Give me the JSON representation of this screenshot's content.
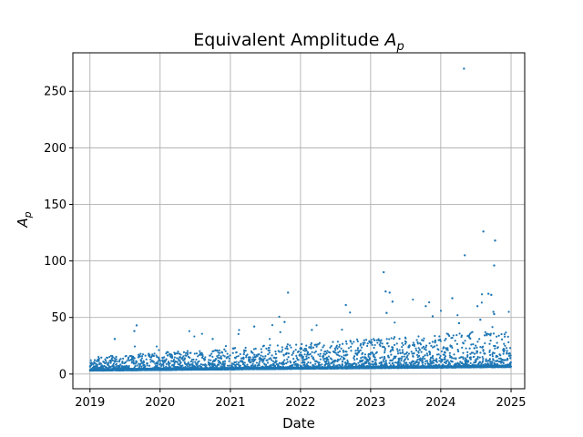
{
  "chart_data": {
    "type": "scatter",
    "title": "Equivalent Amplitude ",
    "title_math": "A",
    "title_sub": "p",
    "xlabel": "Date",
    "ylabel_math": "A",
    "ylabel_sub": "p",
    "x_axis_type": "date",
    "xlim": [
      "2018-10-04",
      "2025-03-13"
    ],
    "ylim": [
      -13,
      284
    ],
    "x_ticks": [
      {
        "value": "2019-01-01",
        "label": "2019"
      },
      {
        "value": "2020-01-01",
        "label": "2020"
      },
      {
        "value": "2021-01-01",
        "label": "2021"
      },
      {
        "value": "2022-01-01",
        "label": "2022"
      },
      {
        "value": "2023-01-01",
        "label": "2023"
      },
      {
        "value": "2024-01-01",
        "label": "2024"
      },
      {
        "value": "2025-01-01",
        "label": "2025"
      }
    ],
    "y_ticks": [
      0,
      50,
      100,
      150,
      200,
      250
    ],
    "grid": true,
    "marker_color": "#1f77b4",
    "series": [
      {
        "x_range": [
          "2019-01-01",
          "2024-12-31"
        ],
        "note_points": [
          {
            "x": "2019-09-01",
            "y": 43
          },
          {
            "x": "2019-08-20",
            "y": 38
          },
          {
            "x": "2019-05-10",
            "y": 31
          },
          {
            "x": "2020-10-01",
            "y": 31
          },
          {
            "x": "2021-05-05",
            "y": 42
          },
          {
            "x": "2021-10-10",
            "y": 46
          },
          {
            "x": "2021-10-28",
            "y": 72
          },
          {
            "x": "2022-03-01",
            "y": 39
          },
          {
            "x": "2022-08-25",
            "y": 61
          },
          {
            "x": "2023-03-10",
            "y": 90
          },
          {
            "x": "2023-03-20",
            "y": 73
          },
          {
            "x": "2023-04-10",
            "y": 72
          },
          {
            "x": "2023-04-25",
            "y": 64
          },
          {
            "x": "2023-03-25",
            "y": 54
          },
          {
            "x": "2023-10-15",
            "y": 60
          },
          {
            "x": "2023-11-20",
            "y": 51
          },
          {
            "x": "2024-05-01",
            "y": 270
          },
          {
            "x": "2024-05-05",
            "y": 105
          },
          {
            "x": "2024-08-10",
            "y": 126
          },
          {
            "x": "2024-10-10",
            "y": 118
          },
          {
            "x": "2024-10-05",
            "y": 96
          },
          {
            "x": "2024-09-05",
            "y": 71
          },
          {
            "x": "2024-09-20",
            "y": 70
          },
          {
            "x": "2024-07-10",
            "y": 60
          },
          {
            "x": "2024-03-01",
            "y": 67
          },
          {
            "x": "2024-10-01",
            "y": 55
          },
          {
            "x": "2024-10-05",
            "y": 53
          },
          {
            "x": "2024-07-25",
            "y": 48
          },
          {
            "x": "2024-04-05",
            "y": 45
          }
        ]
      }
    ]
  }
}
